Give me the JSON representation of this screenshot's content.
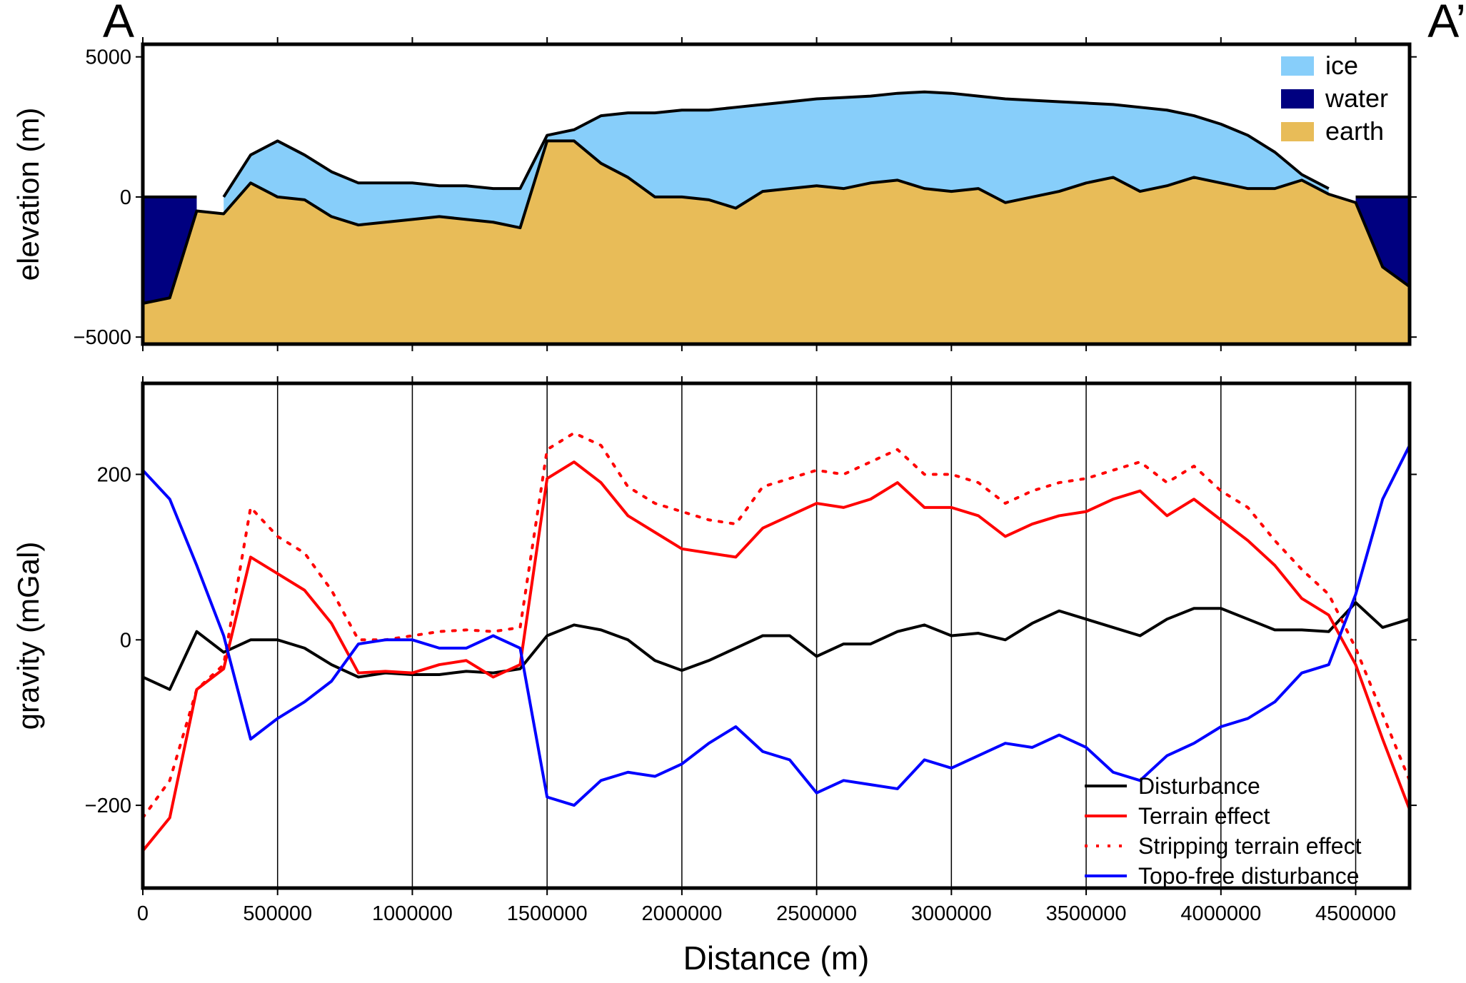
{
  "chart_data": [
    {
      "type": "area",
      "annotations": [
        "A",
        "A’"
      ],
      "ylabel": "elevation (m)",
      "x": [
        0,
        100000,
        200000,
        300000,
        400000,
        500000,
        600000,
        700000,
        800000,
        900000,
        1000000,
        1100000,
        1200000,
        1300000,
        1400000,
        1500000,
        1600000,
        1700000,
        1800000,
        1900000,
        2000000,
        2100000,
        2200000,
        2300000,
        2400000,
        2500000,
        2600000,
        2700000,
        2800000,
        2900000,
        3000000,
        3100000,
        3200000,
        3300000,
        3400000,
        3500000,
        3600000,
        3700000,
        3800000,
        3900000,
        4000000,
        4100000,
        4200000,
        4300000,
        4400000,
        4500000,
        4600000,
        4700000
      ],
      "series": [
        {
          "name": "ice",
          "color": "#87cefa",
          "values": [
            null,
            null,
            null,
            0,
            1500,
            2000,
            1500,
            900,
            500,
            500,
            500,
            400,
            400,
            300,
            300,
            2200,
            2400,
            2900,
            3000,
            3000,
            3100,
            3100,
            3200,
            3300,
            3400,
            3500,
            3550,
            3600,
            3700,
            3750,
            3700,
            3600,
            3500,
            3450,
            3400,
            3350,
            3300,
            3200,
            3100,
            2900,
            2600,
            2200,
            1600,
            800,
            300,
            null,
            null,
            null
          ]
        },
        {
          "name": "water",
          "color": "#000080",
          "values": [
            0,
            0,
            0,
            null,
            null,
            null,
            null,
            null,
            null,
            null,
            null,
            null,
            null,
            null,
            null,
            null,
            null,
            null,
            null,
            null,
            null,
            null,
            null,
            null,
            null,
            null,
            null,
            null,
            null,
            null,
            null,
            null,
            null,
            null,
            null,
            null,
            null,
            null,
            null,
            null,
            null,
            null,
            null,
            null,
            null,
            0,
            0,
            0
          ]
        },
        {
          "name": "earth",
          "color": "#e8bc58",
          "values": [
            -3800,
            -3600,
            -500,
            -600,
            500,
            0,
            -100,
            -700,
            -1000,
            -900,
            -800,
            -700,
            -800,
            -900,
            -1100,
            2000,
            2000,
            1200,
            700,
            0,
            0,
            -100,
            -400,
            200,
            300,
            400,
            300,
            500,
            600,
            300,
            200,
            300,
            -200,
            0,
            200,
            500,
            700,
            200,
            400,
            700,
            500,
            300,
            300,
            600,
            100,
            -200,
            -2500,
            -3200
          ]
        }
      ],
      "xlim": [
        0,
        4700000
      ],
      "ylim": [
        -5250,
        5450
      ],
      "yticks": [
        5000,
        0,
        {
          "value": -5000,
          "label": "−5000"
        }
      ],
      "legend": "top-right"
    },
    {
      "type": "line",
      "xlabel": "Distance (m)",
      "ylabel": "gravity (mGal)",
      "x": [
        0,
        100000,
        200000,
        300000,
        400000,
        500000,
        600000,
        700000,
        800000,
        900000,
        1000000,
        1100000,
        1200000,
        1300000,
        1400000,
        1500000,
        1600000,
        1700000,
        1800000,
        1900000,
        2000000,
        2100000,
        2200000,
        2300000,
        2400000,
        2500000,
        2600000,
        2700000,
        2800000,
        2900000,
        3000000,
        3100000,
        3200000,
        3300000,
        3400000,
        3500000,
        3600000,
        3700000,
        3800000,
        3900000,
        4000000,
        4100000,
        4200000,
        4300000,
        4400000,
        4500000,
        4600000,
        4700000
      ],
      "series": [
        {
          "name": "Disturbance",
          "color": "#000000",
          "dash": "solid",
          "values": [
            -45,
            -60,
            10,
            -15,
            0,
            0,
            -10,
            -30,
            -45,
            -40,
            -42,
            -42,
            -38,
            -40,
            -35,
            5,
            18,
            12,
            0,
            -25,
            -37,
            -25,
            -10,
            5,
            5,
            -20,
            -5,
            -5,
            10,
            18,
            5,
            8,
            0,
            20,
            35,
            25,
            15,
            5,
            25,
            38,
            38,
            25,
            12,
            12,
            10,
            45,
            15,
            25
          ]
        },
        {
          "name": "Terrain effect",
          "color": "#ff0000",
          "dash": "solid",
          "values": [
            -255,
            -215,
            -60,
            -35,
            100,
            80,
            60,
            20,
            -40,
            -38,
            -40,
            -30,
            -25,
            -45,
            -30,
            195,
            215,
            190,
            150,
            130,
            110,
            105,
            100,
            135,
            150,
            165,
            160,
            170,
            190,
            160,
            160,
            150,
            125,
            140,
            150,
            155,
            170,
            180,
            150,
            170,
            145,
            120,
            90,
            50,
            30,
            -30,
            -120,
            -205
          ]
        },
        {
          "name": "Stripping terrain effect",
          "color": "#ff0000",
          "dash": "dotted",
          "values": [
            -215,
            -170,
            -60,
            -30,
            160,
            125,
            105,
            60,
            0,
            0,
            5,
            10,
            12,
            10,
            15,
            230,
            250,
            235,
            185,
            165,
            155,
            145,
            140,
            185,
            195,
            205,
            200,
            215,
            230,
            200,
            200,
            190,
            165,
            180,
            190,
            195,
            205,
            215,
            190,
            210,
            180,
            160,
            120,
            85,
            55,
            -10,
            -90,
            -170
          ]
        },
        {
          "name": "Topo-free disturbance",
          "color": "#0000ff",
          "dash": "solid",
          "values": [
            205,
            170,
            90,
            5,
            -120,
            -95,
            -75,
            -50,
            -5,
            0,
            0,
            -10,
            -10,
            5,
            -10,
            -190,
            -200,
            -170,
            -160,
            -165,
            -150,
            -125,
            -105,
            -135,
            -145,
            -185,
            -170,
            -175,
            -180,
            -145,
            -155,
            -140,
            -125,
            -130,
            -115,
            -130,
            -160,
            -170,
            -140,
            -125,
            -105,
            -95,
            -75,
            -40,
            -30,
            55,
            170,
            235
          ]
        }
      ],
      "xlim": [
        0,
        4700000
      ],
      "xticks": [
        0,
        500000,
        1000000,
        1500000,
        2000000,
        2500000,
        3000000,
        3500000,
        4000000,
        4500000
      ],
      "ylim": [
        -300,
        310
      ],
      "yticks": [
        200,
        0,
        {
          "value": -200,
          "label": "−200"
        }
      ],
      "grid": "x",
      "legend": "bottom-right"
    }
  ]
}
